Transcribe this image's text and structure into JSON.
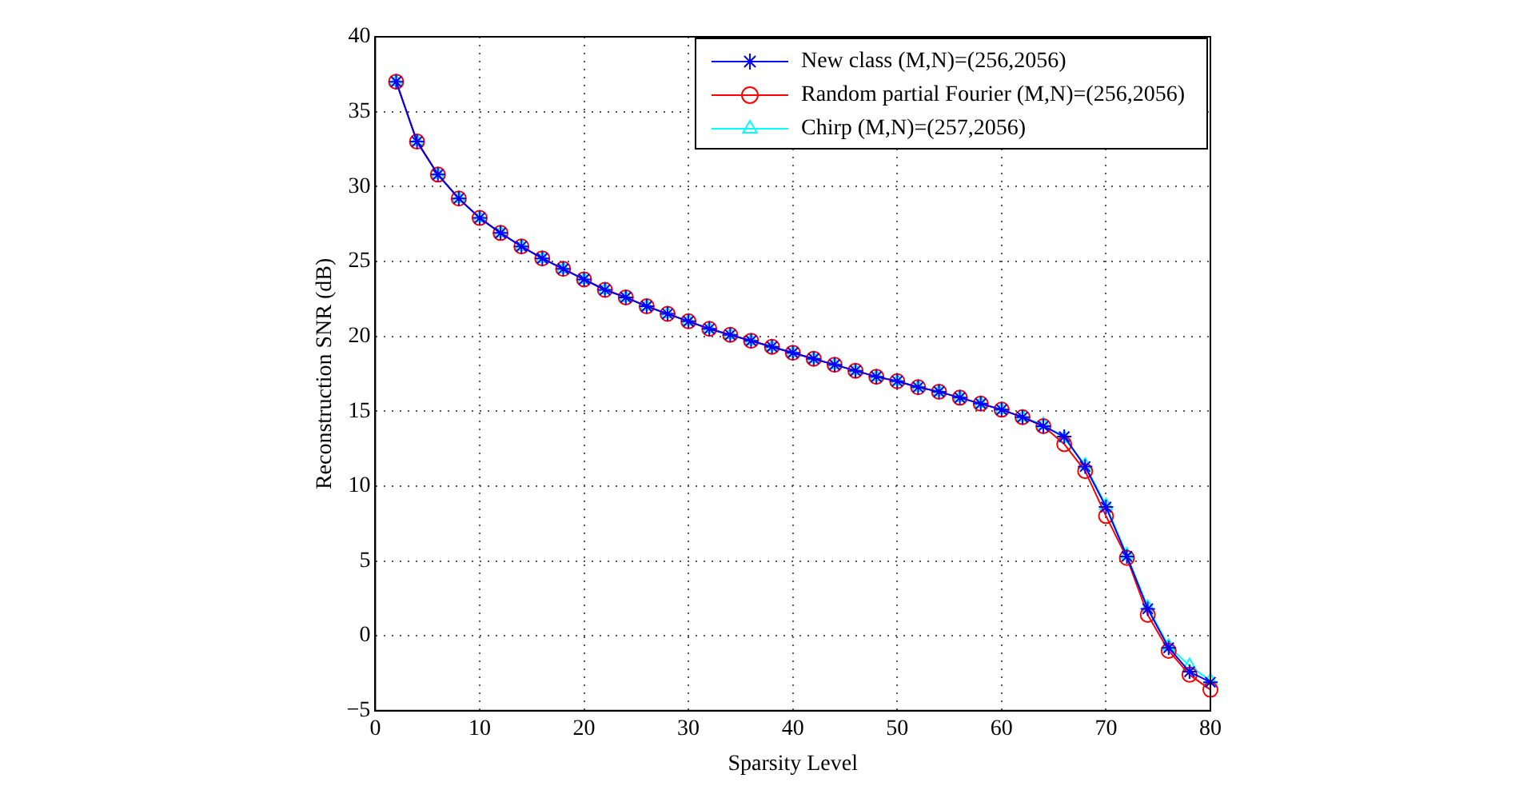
{
  "chart_data": {
    "type": "line",
    "xlabel": "Sparsity Level",
    "ylabel": "Reconstruction SNR (dB)",
    "x": [
      2,
      4,
      6,
      8,
      10,
      12,
      14,
      16,
      18,
      20,
      22,
      24,
      26,
      28,
      30,
      32,
      34,
      36,
      38,
      40,
      42,
      44,
      46,
      48,
      50,
      52,
      54,
      56,
      58,
      60,
      62,
      64,
      66,
      68,
      70,
      72,
      74,
      76,
      78,
      80
    ],
    "series": [
      {
        "name": "New class (M,N)=(256,2056)",
        "color": "#0000ff",
        "marker": "cross",
        "values": [
          37,
          33,
          30.8,
          29.2,
          27.9,
          26.9,
          26,
          25.2,
          24.5,
          23.8,
          23.1,
          22.6,
          22,
          21.5,
          21,
          20.5,
          20.1,
          19.7,
          19.3,
          18.9,
          18.5,
          18.1,
          17.7,
          17.3,
          17,
          16.6,
          16.3,
          15.9,
          15.5,
          15.1,
          14.6,
          14,
          13.3,
          11.3,
          8.6,
          5.3,
          1.8,
          -0.8,
          -2.4,
          -3.1
        ]
      },
      {
        "name": "Random partial Fourier (M,N)=(256,2056)",
        "color": "#ff0000",
        "marker": "circle",
        "values": [
          37,
          33,
          30.8,
          29.2,
          27.9,
          26.9,
          26,
          25.2,
          24.5,
          23.8,
          23.1,
          22.6,
          22,
          21.5,
          21,
          20.5,
          20.1,
          19.7,
          19.3,
          18.9,
          18.5,
          18.1,
          17.7,
          17.3,
          17,
          16.6,
          16.3,
          15.9,
          15.5,
          15.1,
          14.6,
          14,
          12.8,
          11,
          8,
          5.2,
          1.4,
          -1,
          -2.6,
          -3.6
        ]
      },
      {
        "name": "Chirp (M,N)=(257,2056)",
        "color": "#00ffff",
        "marker": "triangle",
        "values": [
          37,
          33,
          30.8,
          29.2,
          27.9,
          26.9,
          26,
          25.2,
          24.5,
          23.8,
          23.1,
          22.6,
          22,
          21.5,
          21,
          20.5,
          20.1,
          19.7,
          19.3,
          18.9,
          18.5,
          18.1,
          17.7,
          17.3,
          17,
          16.6,
          16.3,
          15.9,
          15.5,
          15.1,
          14.6,
          14.1,
          13.2,
          11.4,
          8.7,
          5.4,
          1.9,
          -0.7,
          -2,
          -3
        ]
      }
    ],
    "xlim": [
      0,
      80
    ],
    "xticks": [
      0,
      10,
      20,
      30,
      40,
      50,
      60,
      70,
      80
    ],
    "ylim": [
      -5,
      40
    ],
    "yticks": [
      {
        "value": -5,
        "label": "−5"
      },
      0,
      5,
      10,
      15,
      20,
      25,
      30,
      35,
      40
    ],
    "grid": true,
    "legend": "top right",
    "line_style": "solid"
  }
}
